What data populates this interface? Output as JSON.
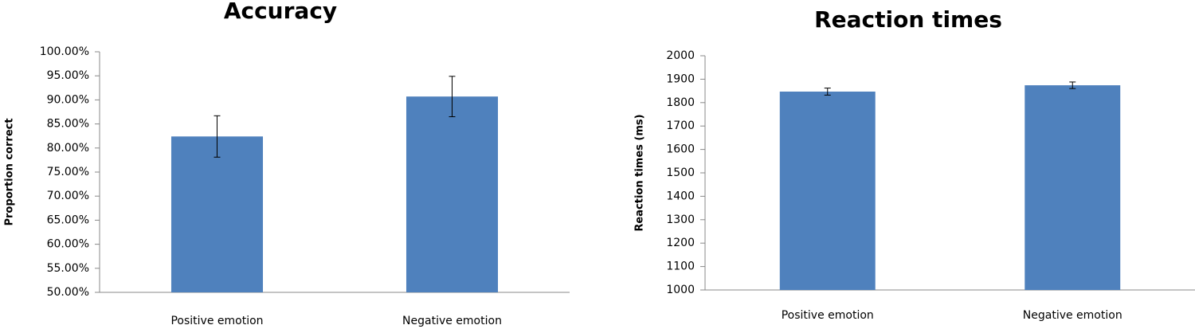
{
  "chart_data": [
    {
      "type": "bar",
      "title": "Accuracy",
      "y_label": "Proportion correct",
      "categories": [
        "Positive emotion",
        "Negative emotion"
      ],
      "values": [
        82.4,
        90.7
      ],
      "errors": [
        4.3,
        4.2
      ],
      "color": "#4f81bd",
      "ylim": [
        50,
        100
      ],
      "yticks": [
        {
          "value": 50,
          "label": "50.00%"
        },
        {
          "value": 55,
          "label": "55.00%"
        },
        {
          "value": 60,
          "label": "60.00%"
        },
        {
          "value": 65,
          "label": "65.00%"
        },
        {
          "value": 70,
          "label": "70.00%"
        },
        {
          "value": 75,
          "label": "75.00%"
        },
        {
          "value": 80,
          "label": "80.00%"
        },
        {
          "value": 85,
          "label": "85.00%"
        },
        {
          "value": 90,
          "label": "90.00%"
        },
        {
          "value": 95,
          "label": "95.00%"
        },
        {
          "value": 100,
          "label": "100.00%"
        }
      ],
      "grid": false
    },
    {
      "type": "bar",
      "title": "Reaction times",
      "y_label": "Reaction times (ms)",
      "categories": [
        "Positive emotion",
        "Negative emotion"
      ],
      "values": [
        1847,
        1874
      ],
      "errors": [
        15,
        14
      ],
      "color": "#4f81bd",
      "ylim": [
        1000,
        2000
      ],
      "yticks": [
        1000,
        1100,
        1200,
        1300,
        1400,
        1500,
        1600,
        1700,
        1800,
        1900,
        2000
      ],
      "grid": false
    }
  ]
}
